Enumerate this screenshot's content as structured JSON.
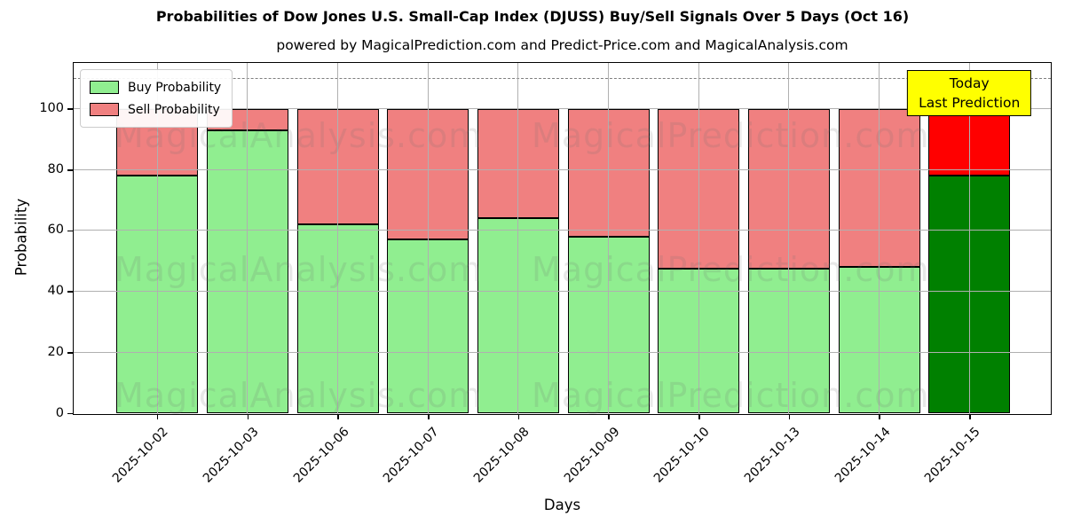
{
  "subtitle": "powered by MagicalPrediction.com and Predict-Price.com and MagicalAnalysis.com",
  "annotation": {
    "line1": "Today",
    "line2": "Last Prediction",
    "bg_color": "#ffff00"
  },
  "watermarks": {
    "left": "MagicalAnalysis.com",
    "right": "MagicalPrediction.com"
  },
  "chart_data": {
    "type": "bar",
    "stacked": true,
    "title": "Probabilities of Dow Jones U.S. Small-Cap Index (DJUSS) Buy/Sell Signals Over 5 Days (Oct 16)",
    "xlabel": "Days",
    "ylabel": "Probability",
    "categories": [
      "2025-10-02",
      "2025-10-03",
      "2025-10-06",
      "2025-10-07",
      "2025-10-08",
      "2025-10-09",
      "2025-10-10",
      "2025-10-13",
      "2025-10-14",
      "2025-10-15"
    ],
    "series": [
      {
        "name": "Buy Probability",
        "color": "#90EE90",
        "last_bar_color": "#008000",
        "values": [
          78,
          93,
          62,
          57,
          64,
          58,
          47.5,
          47.5,
          48,
          78
        ]
      },
      {
        "name": "Sell Probability",
        "color": "#F08080",
        "last_bar_color": "#FF0000",
        "values": [
          22,
          7,
          38,
          43,
          36,
          42,
          52.5,
          52.5,
          52,
          22
        ]
      }
    ],
    "yticks": [
      0,
      20,
      40,
      60,
      80,
      100
    ],
    "ylim": [
      0,
      115
    ],
    "dashed_line_y": 110,
    "grid": true,
    "gridline_color": "#b0b0b0",
    "legend_position": "upper left"
  }
}
